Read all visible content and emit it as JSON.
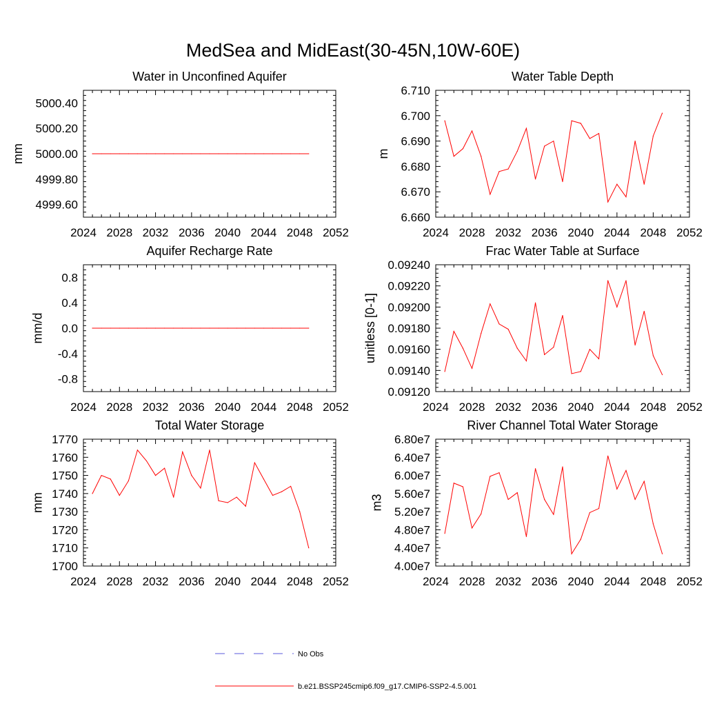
{
  "figure": {
    "title": "MedSea and MidEast(30-45N,10W-60E)"
  },
  "legend": {
    "items": [
      {
        "label": "No Obs",
        "color": "#5a5adc",
        "style": "dashed"
      },
      {
        "label": "b.e21.BSSP245cmip6.f09_g17.CMIP6-SSP2-4.5.001",
        "color": "#ff0000",
        "style": "solid"
      }
    ]
  },
  "chart_data": [
    {
      "type": "line",
      "title": "Water in Unconfined Aquifer",
      "ylabel": "mm",
      "xlim": [
        2024,
        2052
      ],
      "ylim": [
        4999.5,
        5000.5
      ],
      "xticks": [
        2024,
        2028,
        2032,
        2036,
        2040,
        2044,
        2048,
        2052
      ],
      "xtick_labels": [
        "2024",
        "2028",
        "2032",
        "2036",
        "2040",
        "2044",
        "2048",
        "2052"
      ],
      "yticks": [
        4999.6,
        4999.8,
        5000.0,
        5000.2,
        5000.4
      ],
      "ytick_labels": [
        "4999.60",
        "4999.80",
        "5000.00",
        "5000.20",
        "5000.40"
      ],
      "series": [
        {
          "name": "b.e21.BSSP245cmip6.f09_g17.CMIP6-SSP2-4.5.001",
          "color": "#ff0000",
          "x": [
            2025,
            2026,
            2027,
            2028,
            2029,
            2030,
            2031,
            2032,
            2033,
            2034,
            2035,
            2036,
            2037,
            2038,
            2039,
            2040,
            2041,
            2042,
            2043,
            2044,
            2045,
            2046,
            2047,
            2048,
            2049
          ],
          "y": [
            5000.0,
            5000.0,
            5000.0,
            5000.0,
            5000.0,
            5000.0,
            5000.0,
            5000.0,
            5000.0,
            5000.0,
            5000.0,
            5000.0,
            5000.0,
            5000.0,
            5000.0,
            5000.0,
            5000.0,
            5000.0,
            5000.0,
            5000.0,
            5000.0,
            5000.0,
            5000.0,
            5000.0,
            5000.0
          ]
        }
      ]
    },
    {
      "type": "line",
      "title": "Water Table Depth",
      "ylabel": "m",
      "xlim": [
        2024,
        2052
      ],
      "ylim": [
        6.66,
        6.71
      ],
      "xticks": [
        2024,
        2028,
        2032,
        2036,
        2040,
        2044,
        2048,
        2052
      ],
      "xtick_labels": [
        "2024",
        "2028",
        "2032",
        "2036",
        "2040",
        "2044",
        "2048",
        "2052"
      ],
      "yticks": [
        6.66,
        6.67,
        6.68,
        6.69,
        6.7,
        6.71
      ],
      "ytick_labels": [
        "6.660",
        "6.670",
        "6.680",
        "6.690",
        "6.700",
        "6.710"
      ],
      "series": [
        {
          "name": "b.e21.BSSP245cmip6.f09_g17.CMIP6-SSP2-4.5.001",
          "color": "#ff0000",
          "x": [
            2025,
            2026,
            2027,
            2028,
            2029,
            2030,
            2031,
            2032,
            2033,
            2034,
            2035,
            2036,
            2037,
            2038,
            2039,
            2040,
            2041,
            2042,
            2043,
            2044,
            2045,
            2046,
            2047,
            2048,
            2049
          ],
          "y": [
            6.698,
            6.684,
            6.687,
            6.694,
            6.684,
            6.669,
            6.678,
            6.679,
            6.686,
            6.695,
            6.675,
            6.688,
            6.69,
            6.674,
            6.698,
            6.697,
            6.691,
            6.693,
            6.666,
            6.673,
            6.668,
            6.69,
            6.673,
            6.692,
            6.701
          ]
        }
      ]
    },
    {
      "type": "line",
      "title": "Aquifer Recharge Rate",
      "ylabel": "mm/d",
      "xlim": [
        2024,
        2052
      ],
      "ylim": [
        -1.0,
        1.0
      ],
      "xticks": [
        2024,
        2028,
        2032,
        2036,
        2040,
        2044,
        2048,
        2052
      ],
      "xtick_labels": [
        "2024",
        "2028",
        "2032",
        "2036",
        "2040",
        "2044",
        "2048",
        "2052"
      ],
      "yticks": [
        -0.8,
        -0.4,
        0.0,
        0.4,
        0.8
      ],
      "ytick_labels": [
        "-0.8",
        "-0.4",
        "0.0",
        "0.4",
        "0.8"
      ],
      "series": [
        {
          "name": "b.e21.BSSP245cmip6.f09_g17.CMIP6-SSP2-4.5.001",
          "color": "#ff0000",
          "x": [
            2025,
            2026,
            2027,
            2028,
            2029,
            2030,
            2031,
            2032,
            2033,
            2034,
            2035,
            2036,
            2037,
            2038,
            2039,
            2040,
            2041,
            2042,
            2043,
            2044,
            2045,
            2046,
            2047,
            2048,
            2049
          ],
          "y": [
            0.0,
            0.0,
            0.0,
            0.0,
            0.0,
            0.0,
            0.0,
            0.0,
            0.0,
            0.0,
            0.0,
            0.0,
            0.0,
            0.0,
            0.0,
            0.0,
            0.0,
            0.0,
            0.0,
            0.0,
            0.0,
            0.0,
            0.0,
            0.0,
            0.0
          ]
        }
      ]
    },
    {
      "type": "line",
      "title": "Frac Water Table at Surface",
      "ylabel": "unitless [0-1]",
      "xlim": [
        2024,
        2052
      ],
      "ylim": [
        0.0912,
        0.0924
      ],
      "xticks": [
        2024,
        2028,
        2032,
        2036,
        2040,
        2044,
        2048,
        2052
      ],
      "xtick_labels": [
        "2024",
        "2028",
        "2032",
        "2036",
        "2040",
        "2044",
        "2048",
        "2052"
      ],
      "yticks": [
        0.0912,
        0.0914,
        0.0916,
        0.0918,
        0.092,
        0.0922,
        0.0924
      ],
      "ytick_labels": [
        "0.09120",
        "0.09140",
        "0.09160",
        "0.09180",
        "0.09200",
        "0.09220",
        "0.09240"
      ],
      "series": [
        {
          "name": "b.e21.BSSP245cmip6.f09_g17.CMIP6-SSP2-4.5.001",
          "color": "#ff0000",
          "x": [
            2025,
            2026,
            2027,
            2028,
            2029,
            2030,
            2031,
            2032,
            2033,
            2034,
            2035,
            2036,
            2037,
            2038,
            2039,
            2040,
            2041,
            2042,
            2043,
            2044,
            2045,
            2046,
            2047,
            2048,
            2049
          ],
          "y": [
            0.09139,
            0.09177,
            0.09161,
            0.09142,
            0.09175,
            0.09203,
            0.09184,
            0.09179,
            0.09161,
            0.09149,
            0.09204,
            0.09155,
            0.09162,
            0.09192,
            0.09137,
            0.09139,
            0.0916,
            0.09151,
            0.09225,
            0.092,
            0.09225,
            0.09164,
            0.09196,
            0.09154,
            0.09136
          ]
        }
      ]
    },
    {
      "type": "line",
      "title": "Total Water Storage",
      "ylabel": "mm",
      "xlim": [
        2024,
        2052
      ],
      "ylim": [
        1700,
        1770
      ],
      "xticks": [
        2024,
        2028,
        2032,
        2036,
        2040,
        2044,
        2048,
        2052
      ],
      "xtick_labels": [
        "2024",
        "2028",
        "2032",
        "2036",
        "2040",
        "2044",
        "2048",
        "2052"
      ],
      "yticks": [
        1700,
        1710,
        1720,
        1730,
        1740,
        1750,
        1760,
        1770
      ],
      "ytick_labels": [
        "1700",
        "1710",
        "1720",
        "1730",
        "1740",
        "1750",
        "1760",
        "1770"
      ],
      "series": [
        {
          "name": "b.e21.BSSP245cmip6.f09_g17.CMIP6-SSP2-4.5.001",
          "color": "#ff0000",
          "x": [
            2025,
            2026,
            2027,
            2028,
            2029,
            2030,
            2031,
            2032,
            2033,
            2034,
            2035,
            2036,
            2037,
            2038,
            2039,
            2040,
            2041,
            2042,
            2043,
            2044,
            2045,
            2046,
            2047,
            2048,
            2049
          ],
          "y": [
            1740,
            1750,
            1748,
            1739,
            1747,
            1764,
            1758,
            1750,
            1754,
            1738,
            1763,
            1750,
            1743,
            1764,
            1736,
            1735,
            1738,
            1733,
            1757,
            1748,
            1739,
            1741,
            1744,
            1730,
            1710
          ]
        }
      ]
    },
    {
      "type": "line",
      "title": "River Channel Total Water Storage",
      "ylabel": "m3",
      "xlim": [
        2024,
        2052
      ],
      "ylim": [
        40000000,
        68000000
      ],
      "xticks": [
        2024,
        2028,
        2032,
        2036,
        2040,
        2044,
        2048,
        2052
      ],
      "xtick_labels": [
        "2024",
        "2028",
        "2032",
        "2036",
        "2040",
        "2044",
        "2048",
        "2052"
      ],
      "yticks": [
        40000000,
        44000000,
        48000000,
        52000000,
        56000000,
        60000000,
        64000000,
        68000000
      ],
      "ytick_labels": [
        "4.00e7",
        "4.40e7",
        "4.80e7",
        "5.20e7",
        "5.60e7",
        "6.00e7",
        "6.40e7",
        "6.80e7"
      ],
      "series": [
        {
          "name": "b.e21.BSSP245cmip6.f09_g17.CMIP6-SSP2-4.5.001",
          "color": "#ff0000",
          "x": [
            2025,
            2026,
            2027,
            2028,
            2029,
            2030,
            2031,
            2032,
            2033,
            2034,
            2035,
            2036,
            2037,
            2038,
            2039,
            2040,
            2041,
            2042,
            2043,
            2044,
            2045,
            2046,
            2047,
            2048,
            2049
          ],
          "y": [
            47200000,
            58300000,
            57500000,
            48400000,
            51500000,
            59800000,
            60600000,
            54700000,
            56200000,
            46500000,
            61500000,
            54700000,
            51400000,
            61900000,
            42700000,
            45900000,
            51800000,
            52700000,
            64300000,
            57000000,
            61100000,
            54700000,
            58700000,
            49300000,
            42700000
          ]
        }
      ]
    }
  ]
}
